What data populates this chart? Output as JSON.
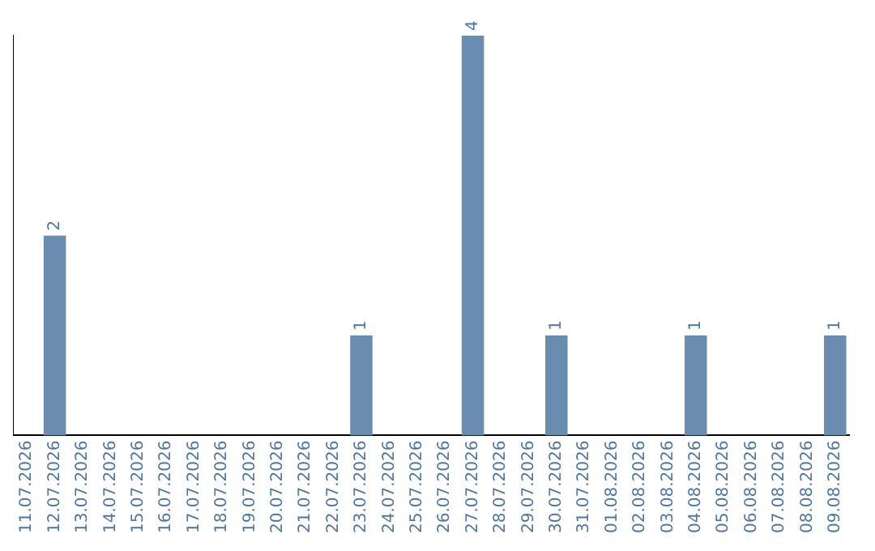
{
  "chart_data": {
    "type": "bar",
    "categories": [
      "11.07.2026",
      "12.07.2026",
      "13.07.2026",
      "14.07.2026",
      "15.07.2026",
      "16.07.2026",
      "17.07.2026",
      "18.07.2026",
      "19.07.2026",
      "20.07.2026",
      "21.07.2026",
      "22.07.2026",
      "23.07.2026",
      "24.07.2026",
      "25.07.2026",
      "26.07.2026",
      "27.07.2026",
      "28.07.2026",
      "29.07.2026",
      "30.07.2026",
      "31.07.2026",
      "01.08.2026",
      "02.08.2026",
      "03.08.2026",
      "04.08.2026",
      "05.08.2026",
      "06.08.2026",
      "07.08.2026",
      "08.08.2026",
      "09.08.2026"
    ],
    "values": [
      0,
      2,
      0,
      0,
      0,
      0,
      0,
      0,
      0,
      0,
      0,
      0,
      1,
      0,
      0,
      0,
      4,
      0,
      0,
      1,
      0,
      0,
      0,
      0,
      1,
      0,
      0,
      0,
      0,
      1
    ],
    "value_labels": [
      null,
      "2",
      null,
      null,
      null,
      null,
      null,
      null,
      null,
      null,
      null,
      null,
      "1",
      null,
      null,
      null,
      "4",
      null,
      null,
      "1",
      null,
      null,
      null,
      null,
      "1",
      null,
      null,
      null,
      null,
      "1"
    ],
    "color": "#6a8caf",
    "tick_labels": "x",
    "grid": false,
    "legend": false
  }
}
